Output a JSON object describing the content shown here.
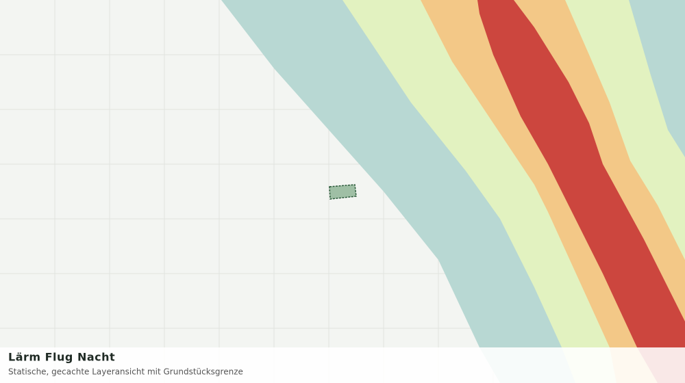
{
  "title": "Lärm Flug Nacht",
  "subtitle": "Statische, gecachte Layeransicht mit Grundstücksgrenze"
}
